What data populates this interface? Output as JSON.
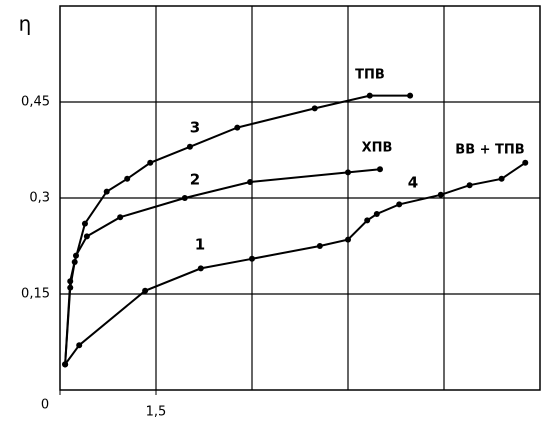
{
  "chart_data": {
    "type": "line",
    "y_label": "η",
    "xlim": [
      0,
      7.5
    ],
    "ylim": [
      0,
      0.6
    ],
    "xticks": [
      0,
      {
        "value": 1.5,
        "label": "1,5"
      }
    ],
    "xgrid": [
      1.5,
      3,
      4.5,
      6
    ],
    "yticks": [
      {
        "value": 0.15,
        "label": "0,15"
      },
      {
        "value": 0.3,
        "label": "0,3"
      },
      {
        "value": 0.45,
        "label": "0,45"
      }
    ],
    "grid": true,
    "color": "#000000",
    "series": [
      {
        "name": "ТПВ",
        "label": "3",
        "color": "#000000",
        "x": [
          0.08,
          0.16,
          0.23,
          0.39,
          0.73,
          1.05,
          1.41,
          2.03,
          2.77,
          3.98,
          4.84,
          5.47
        ],
        "values": [
          0.04,
          0.16,
          0.2,
          0.26,
          0.31,
          0.33,
          0.355,
          0.38,
          0.41,
          0.44,
          0.46,
          0.46
        ]
      },
      {
        "name": "ХПВ",
        "label": "2",
        "color": "#000000",
        "x": [
          0.08,
          0.16,
          0.25,
          0.42,
          0.94,
          1.95,
          2.97,
          4.5,
          5.0
        ],
        "values": [
          0.04,
          0.17,
          0.21,
          0.24,
          0.27,
          0.3,
          0.325,
          0.34,
          0.345
        ]
      },
      {
        "name": "ВВ + ТПВ",
        "label": "1",
        "label2": "4",
        "color": "#000000",
        "x": [
          0.08,
          0.3,
          1.33,
          2.2,
          3.0,
          4.06,
          4.5,
          4.8,
          4.95,
          5.3,
          5.95,
          6.4,
          6.9,
          7.27
        ],
        "values": [
          0.04,
          0.07,
          0.155,
          0.19,
          0.205,
          0.225,
          0.235,
          0.265,
          0.275,
          0.29,
          0.305,
          0.32,
          0.33,
          0.355
        ]
      }
    ]
  }
}
